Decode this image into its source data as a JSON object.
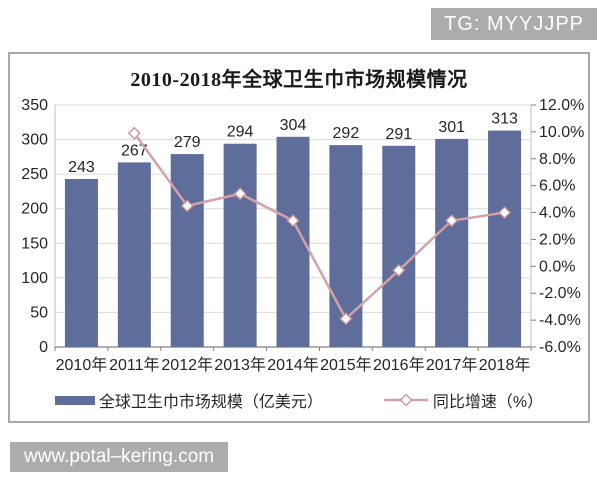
{
  "badges": {
    "top_right": "TG: MYYJJPP",
    "bottom_left": "www.potal–kering.com"
  },
  "chart_data": {
    "type": "bar",
    "subtype": "bar-line-combo",
    "title": "2010-2018年全球卫生巾市场规模情况",
    "categories": [
      "2010年",
      "2011年",
      "2012年",
      "2013年",
      "2014年",
      "2015年",
      "2016年",
      "2017年",
      "2018年"
    ],
    "series": [
      {
        "name": "全球卫生巾市场规模（亿美元）",
        "type": "bar",
        "axis": "left",
        "values": [
          243,
          267,
          279,
          294,
          304,
          292,
          291,
          301,
          313
        ],
        "color": "#5f6d9b"
      },
      {
        "name": "同比增速（%）",
        "type": "line",
        "axis": "right",
        "marker": "open-diamond",
        "values": [
          null,
          9.9,
          4.5,
          5.4,
          3.4,
          -3.9,
          -0.3,
          3.4,
          4.0
        ],
        "color": "#d2a2a8",
        "marker_fill": "#ffffff",
        "marker_stroke": "#c9959c"
      }
    ],
    "left_axis": {
      "min": 0,
      "max": 350,
      "step": 50,
      "ticks": [
        "350",
        "300",
        "250",
        "200",
        "150",
        "100",
        "50",
        "0"
      ]
    },
    "right_axis": {
      "min": -6,
      "max": 12,
      "step": 2,
      "ticks": [
        "12.0%",
        "10.0%",
        "8.0%",
        "6.0%",
        "4.0%",
        "2.0%",
        "0.0%",
        "-2.0%",
        "-4.0%",
        "-6.0%"
      ]
    },
    "grid": true,
    "legend_position": "bottom",
    "colors": {
      "grid_line": "#d9d9d9",
      "axis_line": "#808080",
      "side_axis_line": "#bfbfbf",
      "text": "#262626",
      "panel_border": "#a9a9a9",
      "badge_bg": "#acacac"
    }
  }
}
